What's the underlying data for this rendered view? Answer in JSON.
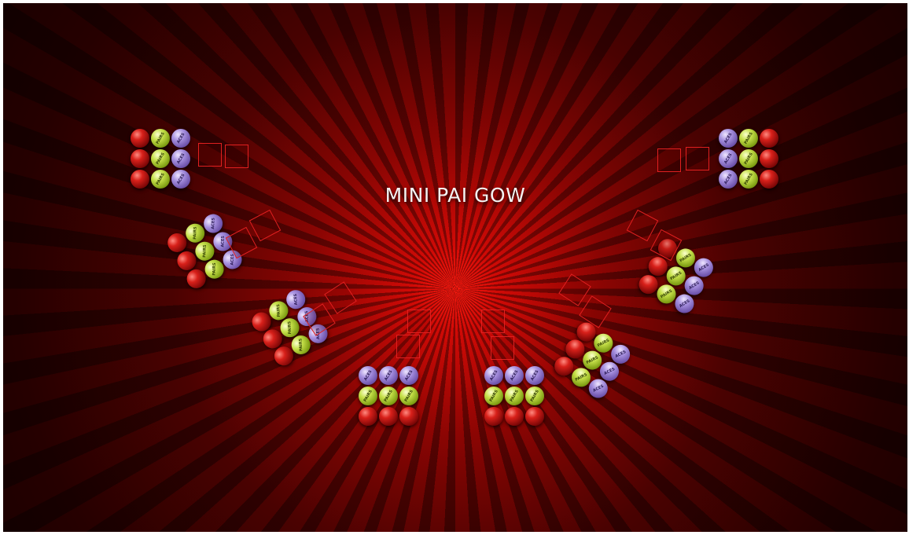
{
  "title": "MINI PAI GOW",
  "colors": {
    "red_ball": "#c0140f",
    "green_ball": "#b5d033",
    "purple_ball": "#8f7acb",
    "card_outline": "#e02020"
  },
  "ball_labels": {
    "green": "PAIRS",
    "purple": "ACES"
  },
  "seats": [
    {
      "id": 1,
      "rows": [
        [
          "red",
          "green",
          "purple"
        ],
        [
          "red",
          "green",
          "purple"
        ],
        [
          "red",
          "green",
          "purple"
        ]
      ],
      "cards": 2
    },
    {
      "id": 2,
      "rows": [
        [
          "red",
          "green",
          "purple"
        ],
        [
          "red",
          "green",
          "purple"
        ],
        [
          "red",
          "green",
          "purple"
        ]
      ],
      "cards": 2
    },
    {
      "id": 3,
      "rows": [
        [
          "red",
          "green",
          "purple"
        ],
        [
          "red",
          "green",
          "purple"
        ],
        [
          "red",
          "green",
          "purple"
        ]
      ],
      "cards": 2
    },
    {
      "id": 4,
      "rows": [
        [
          "purple",
          "purple",
          "purple"
        ],
        [
          "green",
          "green",
          "green"
        ],
        [
          "red",
          "red",
          "red"
        ]
      ],
      "cards": 2
    },
    {
      "id": 5,
      "rows": [
        [
          "purple",
          "purple",
          "purple"
        ],
        [
          "green",
          "green",
          "green"
        ],
        [
          "red",
          "red",
          "red"
        ]
      ],
      "cards": 2
    },
    {
      "id": 6,
      "rows": [
        [
          "red",
          "green",
          "purple"
        ],
        [
          "red",
          "green",
          "purple"
        ],
        [
          "red",
          "green",
          "purple"
        ]
      ],
      "cards": 2
    },
    {
      "id": 7,
      "rows": [
        [
          "red",
          "green",
          "purple"
        ],
        [
          "red",
          "green",
          "purple"
        ],
        [
          "red",
          "green",
          "purple"
        ]
      ],
      "cards": 2
    },
    {
      "id": 8,
      "rows": [
        [
          "purple",
          "green",
          "red"
        ],
        [
          "purple",
          "green",
          "red"
        ],
        [
          "purple",
          "green",
          "red"
        ]
      ],
      "cards": 2
    }
  ]
}
